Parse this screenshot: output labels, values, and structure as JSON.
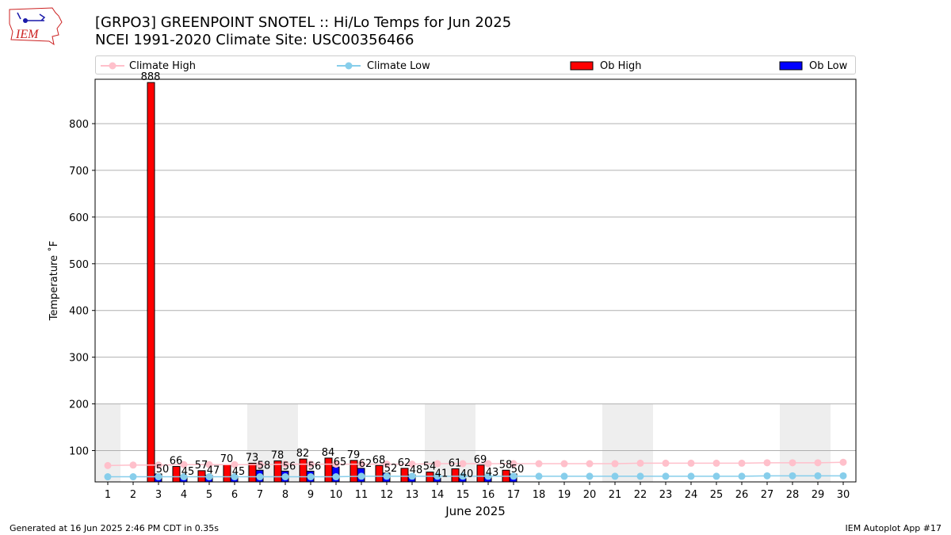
{
  "header": {
    "title_line1": "[GRPO3] GREENPOINT SNOTEL :: Hi/Lo Temps for Jun 2025",
    "title_line2": "NCEI 1991-2020 Climate Site: USC00356466",
    "logo_text": "IEM"
  },
  "legend": {
    "climate_high": "Climate High",
    "climate_low": "Climate Low",
    "ob_high": "Ob High",
    "ob_low": "Ob Low"
  },
  "colors": {
    "climate_high": "#ffc0cb",
    "climate_low": "#87ceeb",
    "ob_high": "#ff0000",
    "ob_low": "#0000ff",
    "weekend_band": "#eeeeee",
    "grid": "#b0b0b0"
  },
  "footer": {
    "left": "Generated at 16 Jun 2025 2:46 PM CDT in 0.35s",
    "right": "IEM Autoplot App #17"
  },
  "chart_data": {
    "type": "bar",
    "xlabel": "June 2025",
    "ylabel": "Temperature ˚F",
    "ylim": [
      33,
      895
    ],
    "xlim": [
      0.5,
      30.5
    ],
    "yticks": [
      100,
      200,
      300,
      400,
      500,
      600,
      700,
      800
    ],
    "grid": "horizontal",
    "legend_position": "top",
    "categories": [
      1,
      2,
      3,
      4,
      5,
      6,
      7,
      8,
      9,
      10,
      11,
      12,
      13,
      14,
      15,
      16,
      17,
      18,
      19,
      20,
      21,
      22,
      23,
      24,
      25,
      26,
      27,
      28,
      29,
      30
    ],
    "series": [
      {
        "name": "Ob High",
        "type": "bar",
        "values": [
          null,
          888,
          66,
          57,
          70,
          73,
          78,
          82,
          84,
          79,
          68,
          62,
          54,
          61,
          69,
          58,
          null,
          null,
          null,
          null,
          null,
          null,
          null,
          null,
          null,
          null,
          null,
          null,
          null,
          null
        ]
      },
      {
        "name": "Ob Low",
        "type": "bar",
        "values": [
          null,
          50,
          45,
          47,
          45,
          58,
          56,
          56,
          65,
          62,
          52,
          48,
          41,
          40,
          43,
          50,
          null,
          null,
          null,
          null,
          null,
          null,
          null,
          null,
          null,
          null,
          null,
          null,
          null,
          null
        ]
      },
      {
        "name": "Climate High",
        "type": "line",
        "values": [
          68,
          69,
          69,
          70,
          70,
          70,
          70,
          71,
          71,
          71,
          71,
          71,
          71,
          72,
          72,
          72,
          72,
          72,
          72,
          72,
          72,
          73,
          73,
          73,
          73,
          73,
          74,
          74,
          74,
          75
        ]
      },
      {
        "name": "Climate Low",
        "type": "line",
        "values": [
          44,
          44,
          44,
          44,
          44,
          44,
          44,
          44,
          44,
          44,
          45,
          45,
          45,
          45,
          45,
          45,
          45,
          45,
          45,
          45,
          45,
          45,
          45,
          45,
          45,
          45,
          46,
          46,
          46,
          46
        ]
      }
    ],
    "weekend_bands": [
      [
        0.5,
        1.5
      ],
      [
        6.5,
        8.5
      ],
      [
        13.5,
        15.5
      ],
      [
        20.5,
        22.5
      ],
      [
        27.5,
        29.5
      ]
    ],
    "weekend_band_top": 200
  }
}
